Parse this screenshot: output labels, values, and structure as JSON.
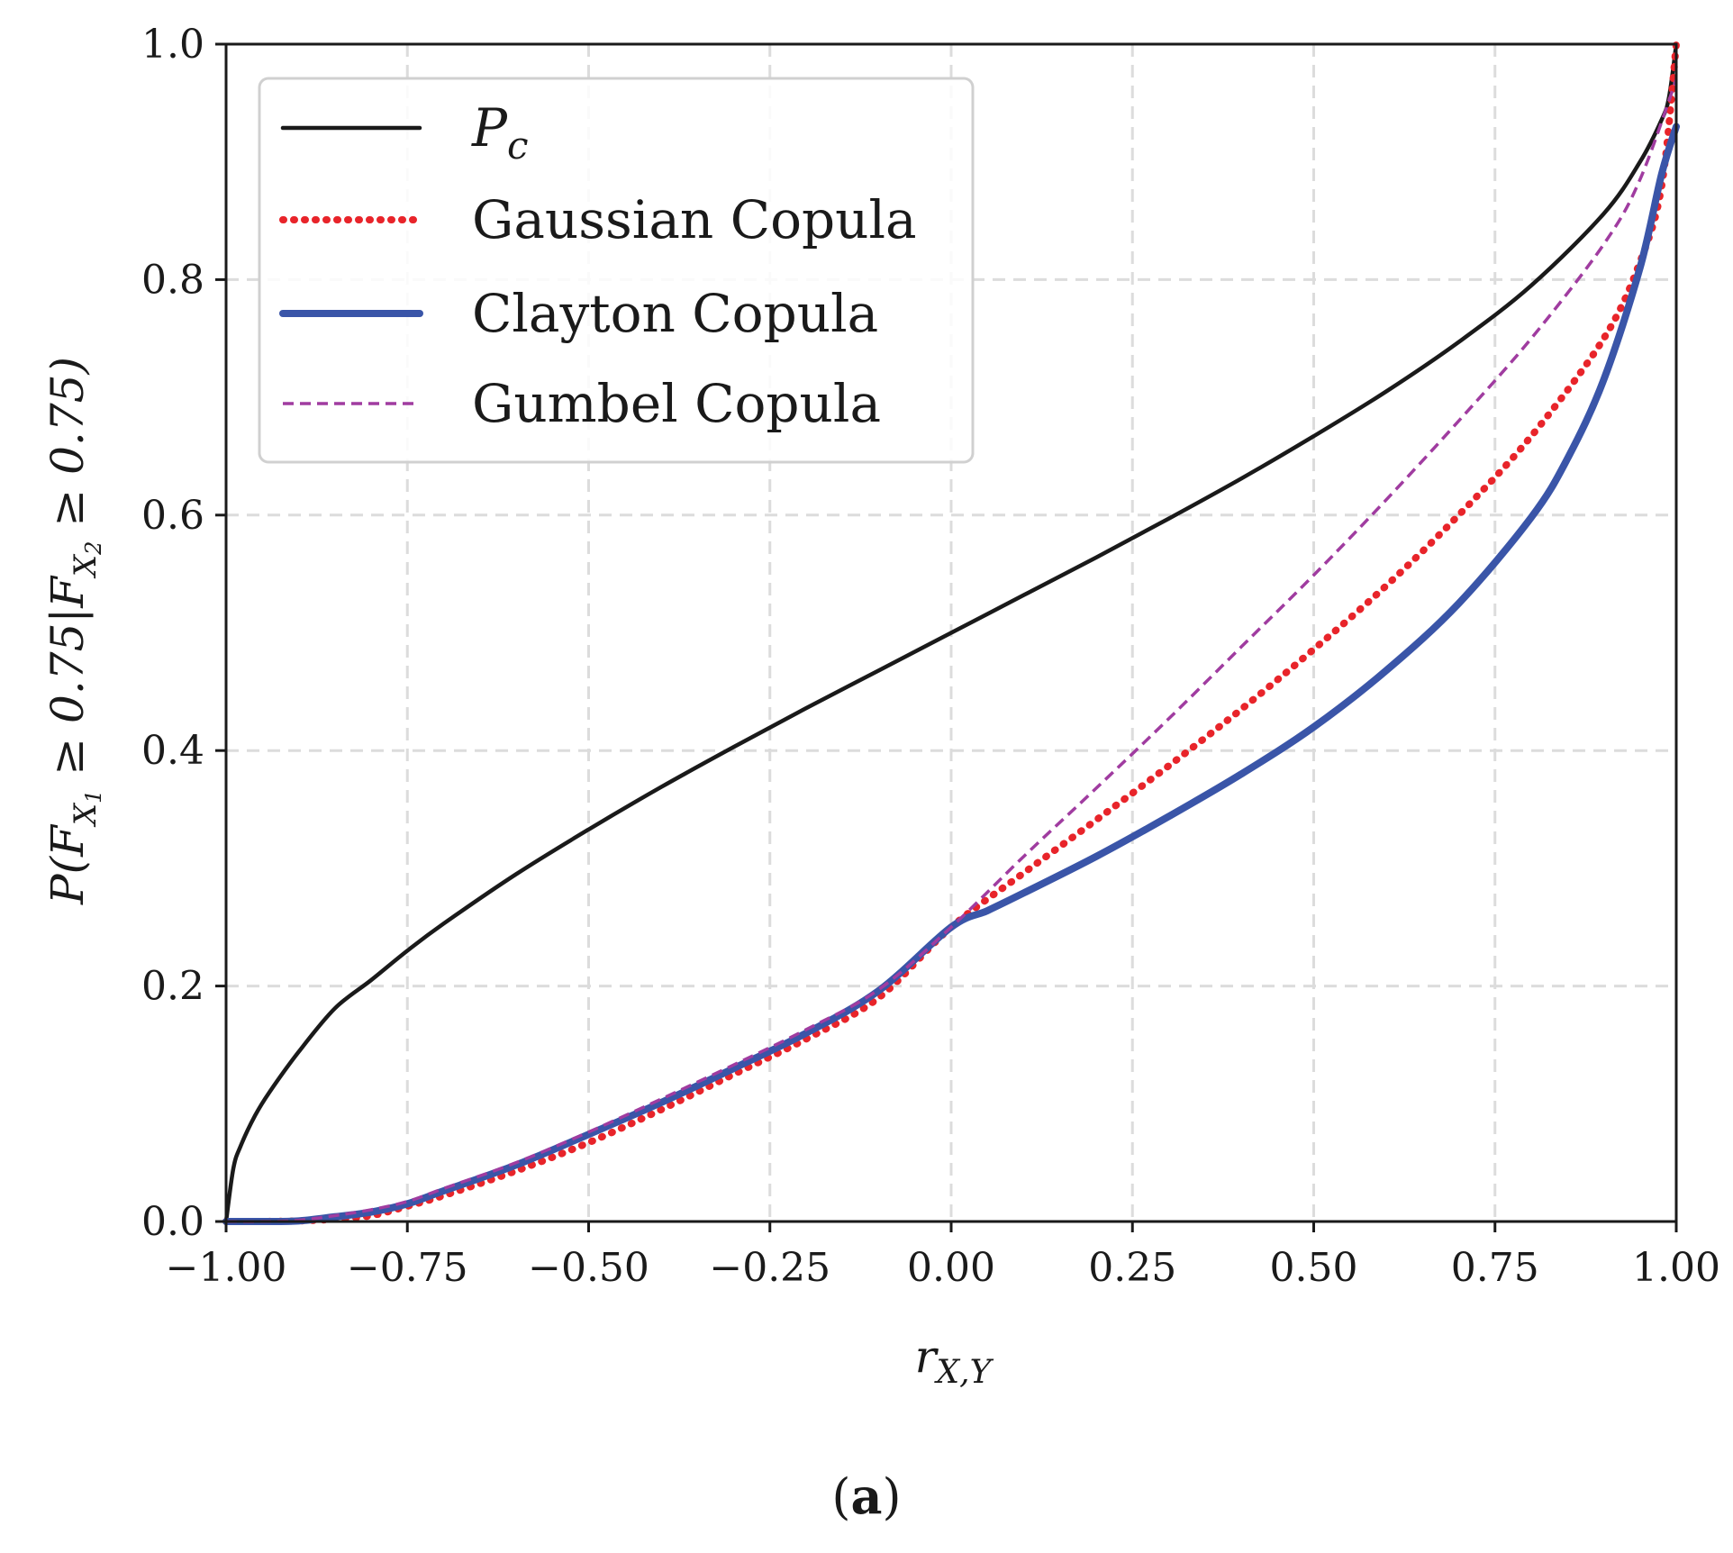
{
  "chart_data": {
    "type": "line",
    "xlabel": "r_{X,Y}",
    "xlabel_main": "r",
    "xlabel_sub": "X,Y",
    "ylabel": "P(F_{X_1} ≥ 0.75|F_{X_2} ≥ 0.75)",
    "ylabel_parts": {
      "p1": "P(F",
      "s1": "X",
      "s1b": "1",
      "p2": " ≥ 0.75|F",
      "s2": "X",
      "s2b": "2",
      "p3": " ≥ 0.75)"
    },
    "xlim": [
      -1.0,
      1.0
    ],
    "ylim": [
      0.0,
      1.0
    ],
    "xticks": [
      -1.0,
      -0.75,
      -0.5,
      -0.25,
      0.0,
      0.25,
      0.5,
      0.75,
      1.0
    ],
    "xtick_labels": [
      "−1.00",
      "−0.75",
      "−0.50",
      "−0.25",
      "0.00",
      "0.25",
      "0.50",
      "0.75",
      "1.00"
    ],
    "yticks": [
      0.0,
      0.2,
      0.4,
      0.6,
      0.8,
      1.0
    ],
    "ytick_labels": [
      "0.0",
      "0.2",
      "0.4",
      "0.6",
      "0.8",
      "1.0"
    ],
    "grid": true,
    "legend_position": "top-left",
    "caption": {
      "open": "(",
      "letter": "a",
      "close": ")"
    },
    "series": [
      {
        "name": "P_c",
        "legend_label": "P",
        "legend_sub": "c",
        "color": "#1a1a1a",
        "style": "solid",
        "x": [
          -1.0,
          -0.99,
          -0.98,
          -0.96,
          -0.94,
          -0.9,
          -0.85,
          -0.8,
          -0.75,
          -0.7,
          -0.6,
          -0.5,
          -0.4,
          -0.3,
          -0.2,
          -0.1,
          0.0,
          0.1,
          0.2,
          0.3,
          0.4,
          0.5,
          0.6,
          0.7,
          0.8,
          0.9,
          0.95,
          0.98,
          0.99,
          1.0
        ],
        "y": [
          0.0,
          0.045,
          0.064,
          0.09,
          0.11,
          0.144,
          0.181,
          0.205,
          0.23,
          0.253,
          0.295,
          0.333,
          0.369,
          0.403,
          0.436,
          0.468,
          0.5,
          0.532,
          0.564,
          0.597,
          0.631,
          0.667,
          0.705,
          0.747,
          0.795,
          0.856,
          0.9,
          0.936,
          0.955,
          1.0
        ]
      },
      {
        "name": "Gaussian Copula",
        "legend_label": "Gaussian Copula",
        "color": "#e8242a",
        "style": "dotted",
        "x": [
          -1.0,
          -0.95,
          -0.9,
          -0.85,
          -0.8,
          -0.75,
          -0.7,
          -0.6,
          -0.5,
          -0.4,
          -0.3,
          -0.2,
          -0.1,
          0.0,
          0.1,
          0.2,
          0.3,
          0.4,
          0.5,
          0.6,
          0.7,
          0.8,
          0.9,
          0.95,
          0.98,
          1.0
        ],
        "y": [
          0.0,
          0.0,
          0.0005,
          0.002,
          0.005,
          0.013,
          0.022,
          0.043,
          0.067,
          0.095,
          0.125,
          0.155,
          0.19,
          0.25,
          0.296,
          0.341,
          0.387,
          0.435,
          0.486,
          0.54,
          0.6,
          0.667,
          0.75,
          0.815,
          0.88,
          1.0
        ]
      },
      {
        "name": "Clayton Copula",
        "legend_label": "Clayton Copula",
        "color": "#3a55a8",
        "style": "solid-thick",
        "x": [
          -1.0,
          -0.95,
          -0.9,
          -0.85,
          -0.8,
          -0.75,
          -0.7,
          -0.6,
          -0.5,
          -0.4,
          -0.3,
          -0.2,
          -0.1,
          0.0,
          0.05,
          0.1,
          0.2,
          0.3,
          0.4,
          0.5,
          0.6,
          0.7,
          0.8,
          0.85,
          0.9,
          0.95,
          0.98,
          1.0
        ],
        "y": [
          0.0,
          0.0,
          0.0005,
          0.004,
          0.008,
          0.015,
          0.026,
          0.048,
          0.074,
          0.101,
          0.13,
          0.16,
          0.196,
          0.25,
          0.264,
          0.279,
          0.31,
          0.344,
          0.38,
          0.42,
          0.468,
          0.525,
          0.598,
          0.648,
          0.715,
          0.81,
          0.89,
          0.93
        ]
      },
      {
        "name": "Gumbel Copula",
        "legend_label": "Gumbel Copula",
        "color": "#a03ca0",
        "style": "dashed",
        "x": [
          -1.0,
          -0.95,
          -0.9,
          -0.85,
          -0.8,
          -0.75,
          -0.7,
          -0.6,
          -0.5,
          -0.4,
          -0.3,
          -0.2,
          -0.1,
          0.0,
          0.1,
          0.2,
          0.3,
          0.4,
          0.5,
          0.6,
          0.7,
          0.8,
          0.9,
          0.95,
          1.0
        ],
        "y": [
          0.0,
          0.0,
          0.001,
          0.005,
          0.01,
          0.017,
          0.028,
          0.05,
          0.076,
          0.104,
          0.133,
          0.163,
          0.197,
          0.25,
          0.31,
          0.368,
          0.427,
          0.488,
          0.549,
          0.613,
          0.68,
          0.75,
          0.83,
          0.885,
          0.97
        ]
      }
    ]
  }
}
